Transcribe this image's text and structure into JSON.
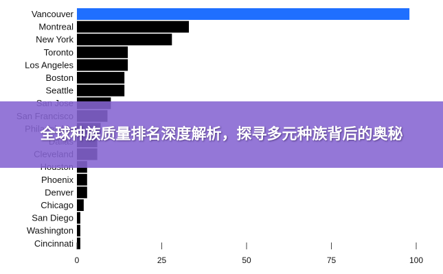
{
  "banner": {
    "title": "全球种族质量排名深度解析，探寻多元种族背后的奥秘"
  },
  "colors": {
    "highlight": "#1f6fff",
    "bar": "#000000",
    "overlay": "#8564d2"
  },
  "chart_data": {
    "type": "bar",
    "orientation": "horizontal",
    "categories": [
      "Vancouver",
      "Montreal",
      "New York",
      "Toronto",
      "Los Angeles",
      "Boston",
      "Seattle",
      "San Jose",
      "San Francisco",
      "Philadelphia",
      "Dallas",
      "Cleveland",
      "Houston",
      "Phoenix",
      "Denver",
      "Chicago",
      "San Diego",
      "Washington",
      "Cincinnati"
    ],
    "values": [
      98,
      33,
      28,
      15,
      15,
      14,
      14,
      10,
      9,
      7,
      6,
      6,
      3,
      3,
      3,
      2,
      1,
      1,
      1
    ],
    "highlight": "Vancouver",
    "xlim": [
      0,
      100
    ],
    "xticks": [
      0,
      25,
      50,
      75,
      100
    ],
    "grid": false
  }
}
